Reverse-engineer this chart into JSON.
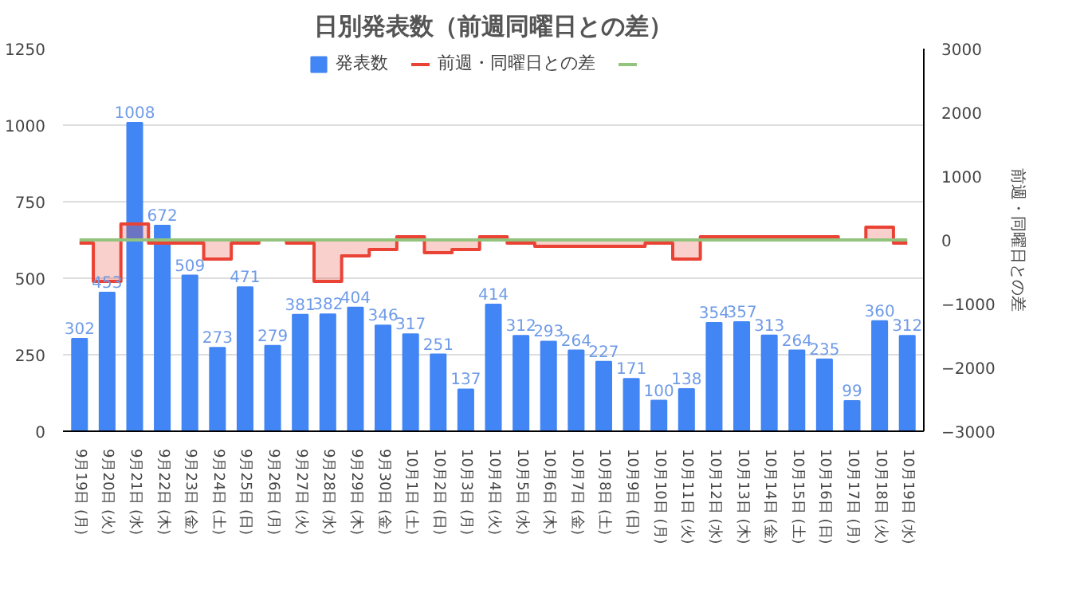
{
  "chart_data": {
    "type": "bar",
    "title": "日別発表数（前週同曜日との差）",
    "y2label": "前週・同曜日との差",
    "categories": [
      "9月19日 (月)",
      "9月20日 (火)",
      "9月21日 (水)",
      "9月22日 (木)",
      "9月23日 (金)",
      "9月24日 (土)",
      "9月25日 (日)",
      "9月26日 (月)",
      "9月27日 (火)",
      "9月28日 (水)",
      "9月29日 (木)",
      "9月30日 (金)",
      "10月1日 (土)",
      "10月2日 (日)",
      "10月3日 (月)",
      "10月4日 (火)",
      "10月5日 (水)",
      "10月6日 (木)",
      "10月7日 (金)",
      "10月8日 (土)",
      "10月9日 (日)",
      "10月10日 (月)",
      "10月11日 (火)",
      "10月12日 (水)",
      "10月13日 (木)",
      "10月14日 (金)",
      "10月15日 (土)",
      "10月16日 (日)",
      "10月17日 (月)",
      "10月18日 (火)",
      "10月19日 (水)"
    ],
    "series": [
      {
        "name": "発表数",
        "color": "#4285f4",
        "values": [
          302,
          453,
          1008,
          672,
          509,
          273,
          471,
          279,
          381,
          382,
          404,
          346,
          317,
          251,
          137,
          414,
          312,
          293,
          264,
          227,
          171,
          100,
          138,
          354,
          357,
          313,
          264,
          235,
          99,
          360,
          312
        ],
        "value_labels": [
          "302",
          "453",
          "1008",
          "672",
          "509",
          "273",
          "471",
          "279",
          "381",
          "382",
          "404",
          "346",
          "317",
          "251",
          "137",
          "414",
          "312",
          "293",
          "264",
          "227",
          "171",
          "100",
          "138",
          "354",
          "357",
          "313",
          "264",
          "235",
          "99",
          "360",
          "312"
        ]
      },
      {
        "name": "前週・同曜日との差",
        "type": "area",
        "axis": "y2",
        "color": "#ea4335",
        "values": [
          -50,
          -650,
          250,
          -50,
          -50,
          -300,
          -50,
          0,
          -50,
          -650,
          -250,
          -150,
          50,
          -200,
          -150,
          50,
          -50,
          -100,
          -100,
          -100,
          -100,
          -50,
          -300,
          50,
          50,
          50,
          50,
          50,
          0,
          200,
          -50
        ]
      },
      {
        "type": "line",
        "axis": "y2",
        "color": "#93c47d",
        "values": [
          0,
          0,
          0,
          0,
          0,
          0,
          0,
          0,
          0,
          0,
          0,
          0,
          0,
          0,
          0,
          0,
          0,
          0,
          0,
          0,
          0,
          0,
          0,
          0,
          0,
          0,
          0,
          0,
          0,
          0,
          0
        ]
      }
    ],
    "ylim": [
      0,
      1250
    ],
    "yticks": [
      0,
      250,
      500,
      750,
      1000,
      1250
    ],
    "y2lim": [
      -3000,
      3000
    ],
    "y2ticks": [
      -3000,
      -2000,
      -1000,
      0,
      1000,
      2000,
      3000
    ],
    "grid": "y",
    "legend": "top"
  }
}
